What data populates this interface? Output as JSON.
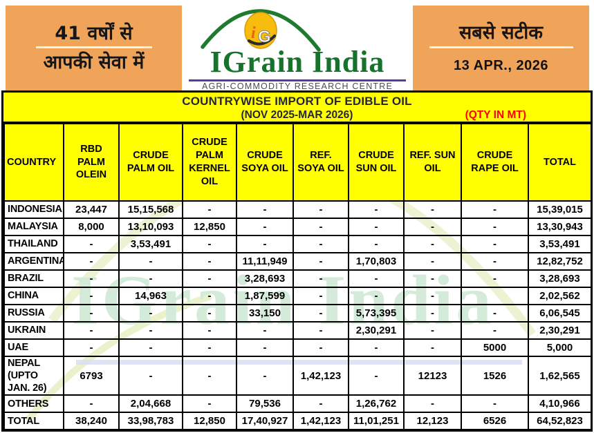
{
  "header": {
    "left_box": {
      "line1": "41 वर्षों से",
      "line2": "आपकी सेवा में"
    },
    "logo": {
      "brand": "IGrain India",
      "monogram": "iG",
      "tagline": "AGRI-COMMODITY RESEARCH CENTRE"
    },
    "right_box": {
      "line1": "सबसे सटीक",
      "date": "13 APR., 2026"
    }
  },
  "title": {
    "line1": "COUNTRYWISE IMPORT OF EDIBLE OIL",
    "line2": "(NOV 2025-MAR 2026)",
    "qty_note": "(QTY IN MT)"
  },
  "watermark": "IGrain India",
  "table": {
    "columns": [
      "COUNTRY",
      "RBD PALM OLEIN",
      "CRUDE PALM OIL",
      "CRUDE PALM KERNEL OIL",
      "CRUDE SOYA OIL",
      "REF. SOYA OIL",
      "CRUDE SUN OIL",
      "REF. SUN OIL",
      "CRUDE RAPE OIL",
      "TOTAL"
    ],
    "rows": [
      {
        "country": "INDONESIA",
        "values": [
          "23,447",
          "15,15,568",
          "-",
          "-",
          "-",
          "-",
          "-",
          "-",
          "15,39,015"
        ]
      },
      {
        "country": "MALAYSIA",
        "values": [
          "8,000",
          "13,10,093",
          "12,850",
          "-",
          "-",
          "-",
          "-",
          "-",
          "13,30,943"
        ]
      },
      {
        "country": "THAILAND",
        "values": [
          "-",
          "3,53,491",
          "-",
          "-",
          "-",
          "-",
          "-",
          "-",
          "3,53,491"
        ]
      },
      {
        "country": "ARGENTINA",
        "values": [
          "-",
          "-",
          "-",
          "11,11,949",
          "-",
          "1,70,803",
          "-",
          "-",
          "12,82,752"
        ]
      },
      {
        "country": "BRAZIL",
        "values": [
          "-",
          "-",
          "-",
          "3,28,693",
          "-",
          "-",
          "-",
          "-",
          "3,28,693"
        ]
      },
      {
        "country": "CHINA",
        "values": [
          "-",
          "14,963",
          "-",
          "1,87,599",
          "-",
          "-",
          "-",
          "",
          "2,02,562"
        ]
      },
      {
        "country": "RUSSIA",
        "values": [
          "-",
          "-",
          "-",
          "33,150",
          "-",
          "5,73,395",
          "-",
          "-",
          "6,06,545"
        ]
      },
      {
        "country": "UKRAIN",
        "values": [
          "-",
          "-",
          "-",
          "-",
          "-",
          "2,30,291",
          "-",
          "-",
          "2,30,291"
        ]
      },
      {
        "country": "UAE",
        "values": [
          "-",
          "-",
          "-",
          "-",
          "-",
          "-",
          "-",
          "5000",
          "5,000"
        ]
      },
      {
        "country": "NEPAL (UPTO JAN. 26)",
        "values": [
          "6793",
          "-",
          "-",
          "-",
          "1,42,123",
          "-",
          "12123",
          "1526",
          "1,62,565"
        ]
      },
      {
        "country": "OTHERS",
        "values": [
          "-",
          "2,04,668",
          "-",
          "79,536",
          "-",
          "1,26,762",
          "-",
          "-",
          "4,10,966"
        ]
      },
      {
        "country": "TOTAL",
        "values": [
          "38,240",
          "33,98,783",
          "12,850",
          "17,40,927",
          "1,42,123",
          "11,01,251",
          "12,123",
          "6526",
          "64,52,823"
        ]
      }
    ]
  },
  "colors": {
    "orange": "#F0A45A",
    "yellow": "#FFFF00",
    "red": "#FF0000",
    "green": "#17722C",
    "purple": "#5B3A9B",
    "watermark": "#D5EBDA",
    "ink": "#26263A"
  }
}
